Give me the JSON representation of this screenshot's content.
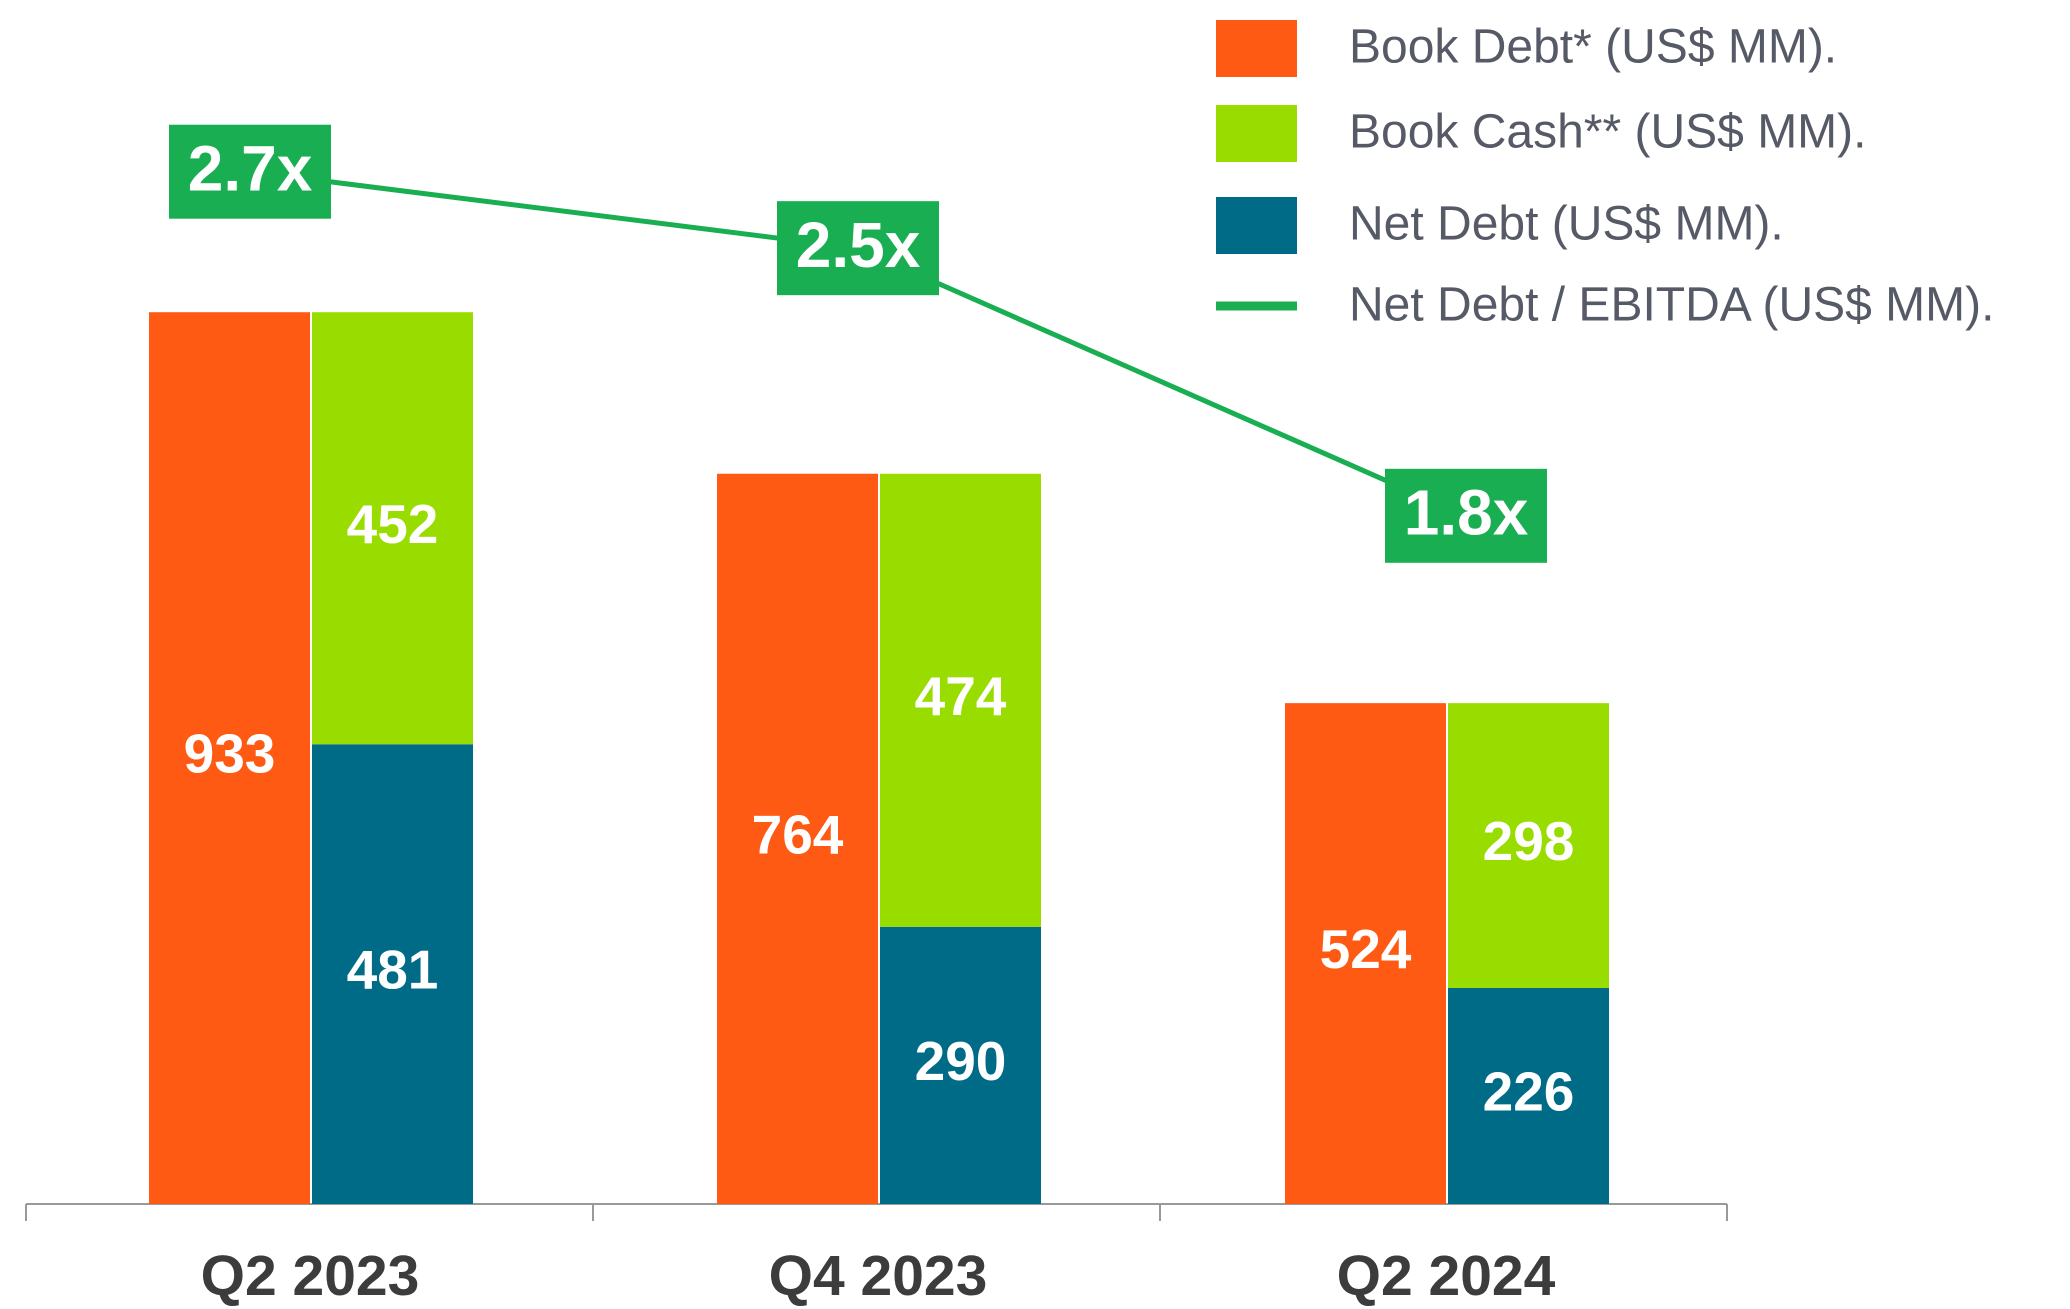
{
  "chart_data": {
    "type": "bar",
    "categories": [
      "Q2 2023",
      "Q4 2023",
      "Q2 2024"
    ],
    "series": [
      {
        "name": "Book Debt* (US$ MM).",
        "color": "#ff5a14",
        "group": 0,
        "values": [
          933,
          764,
          524
        ]
      },
      {
        "name": "Book Cash** (US$ MM).",
        "color": "#99dd00",
        "group": 1,
        "values": [
          452,
          474,
          298
        ]
      },
      {
        "name": "Net Debt (US$ MM).",
        "color": "#006b87",
        "group": 1,
        "values": [
          481,
          290,
          226
        ]
      },
      {
        "name": "Net Debt / EBITDA (US$ MM).",
        "color": "#1aae52",
        "type": "line",
        "axis": "y2",
        "values": [
          2.7,
          2.5,
          1.8
        ],
        "value_labels": [
          "2.7x",
          "2.5x",
          "1.8x"
        ]
      }
    ],
    "ylim": [
      0,
      1200
    ],
    "y2lim": [
      0,
      3
    ]
  }
}
